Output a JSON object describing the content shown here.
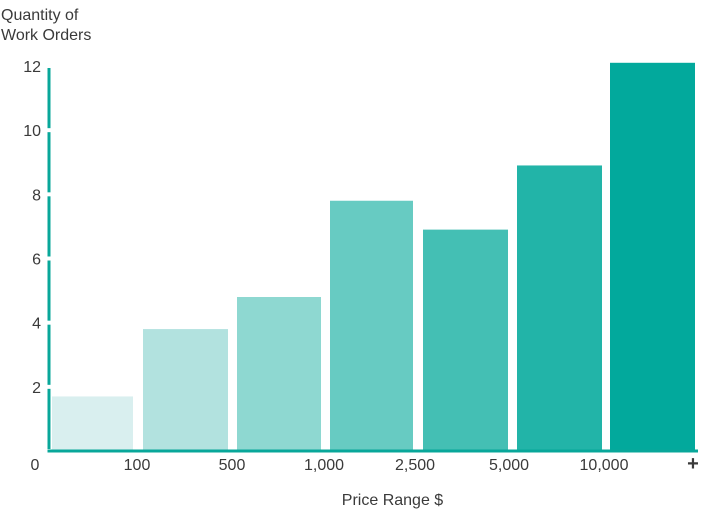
{
  "chart_data": {
    "type": "bar",
    "ylabel_lines": [
      "Quantity of",
      "Work Orders"
    ],
    "xlabel": "Price Range $",
    "x_tick_labels": [
      "0",
      "100",
      "500",
      "1,000",
      "2,500",
      "5,000",
      "10,000",
      "+"
    ],
    "y_ticks": [
      2,
      4,
      6,
      8,
      10,
      12
    ],
    "ylim": [
      0,
      12
    ],
    "bins": [
      "0–100",
      "100–500",
      "500–1,000",
      "1,000–2,500",
      "2,500–5,000",
      "5,000–10,000",
      "10,000–+"
    ],
    "values": [
      1.7,
      3.8,
      4.8,
      7.8,
      6.9,
      8.9,
      12.1
    ],
    "grid": false,
    "legend": "none"
  },
  "colors": {
    "axis": "#08a79a",
    "text": "#3a3a3a",
    "bars": [
      "#d9efef",
      "#b2e2df",
      "#8ed8d1",
      "#67cbc2",
      "#44bfb4",
      "#22b4a8",
      "#02a99c"
    ]
  }
}
